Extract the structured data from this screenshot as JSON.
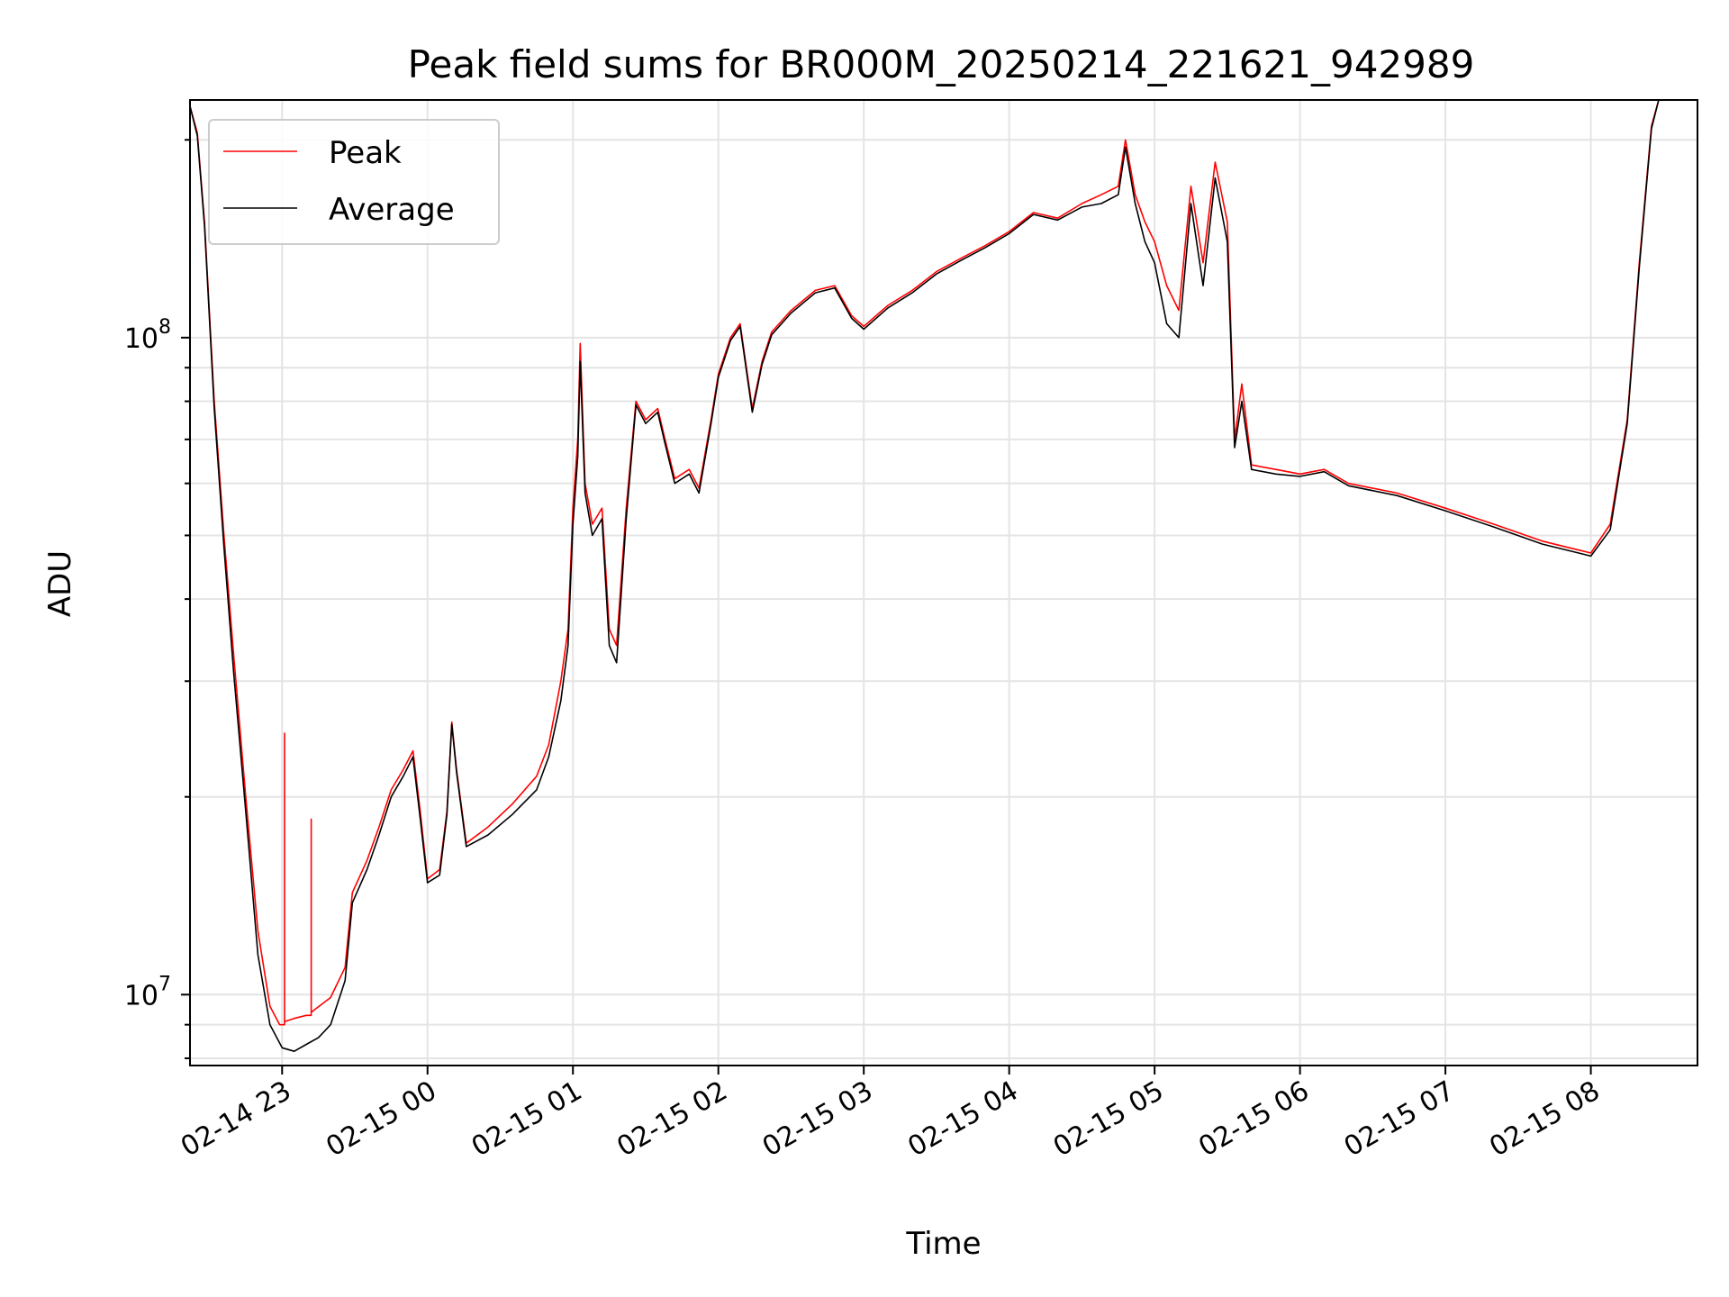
{
  "chart_data": {
    "type": "line",
    "title": "Peak field sums for BR000M_20250214_221621_942989",
    "xlabel": "Time",
    "ylabel": "ADU",
    "yscale": "log",
    "ylim": [
      7800000,
      230000000
    ],
    "xlim": [
      "2025-02-14 22:22",
      "2025-02-15 08:44"
    ],
    "grid": true,
    "legend_position": "top-left",
    "x_ticks": [
      {
        "t": "2025-02-14 23:00",
        "label": "02-14 23"
      },
      {
        "t": "2025-02-15 00:00",
        "label": "02-15 00"
      },
      {
        "t": "2025-02-15 01:00",
        "label": "02-15 01"
      },
      {
        "t": "2025-02-15 02:00",
        "label": "02-15 02"
      },
      {
        "t": "2025-02-15 03:00",
        "label": "02-15 03"
      },
      {
        "t": "2025-02-15 04:00",
        "label": "02-15 04"
      },
      {
        "t": "2025-02-15 05:00",
        "label": "02-15 05"
      },
      {
        "t": "2025-02-15 06:00",
        "label": "02-15 06"
      },
      {
        "t": "2025-02-15 07:00",
        "label": "02-15 07"
      },
      {
        "t": "2025-02-15 08:00",
        "label": "02-15 08"
      }
    ],
    "y_ticks": [
      {
        "value": 10000000,
        "base": "10",
        "exp": "7"
      },
      {
        "value": 100000000,
        "base": "10",
        "exp": "8"
      }
    ],
    "series": [
      {
        "name": "Peak",
        "color": "#ff0000",
        "points": [
          [
            "2025-02-14 22:22",
            225000000
          ],
          [
            "2025-02-14 22:25",
            205000000
          ],
          [
            "2025-02-14 22:28",
            150000000
          ],
          [
            "2025-02-14 22:32",
            80000000
          ],
          [
            "2025-02-14 22:36",
            50000000
          ],
          [
            "2025-02-14 22:40",
            33000000
          ],
          [
            "2025-02-14 22:45",
            20000000
          ],
          [
            "2025-02-14 22:50",
            12500000
          ],
          [
            "2025-02-14 22:55",
            9600000
          ],
          [
            "2025-02-14 22:59",
            9000000
          ],
          [
            "2025-02-14 23:01",
            9000000
          ],
          [
            "2025-02-14 23:01",
            25000000
          ],
          [
            "2025-02-14 23:01",
            9100000
          ],
          [
            "2025-02-14 23:05",
            9200000
          ],
          [
            "2025-02-14 23:10",
            9300000
          ],
          [
            "2025-02-14 23:12",
            9300000
          ],
          [
            "2025-02-14 23:12",
            18500000
          ],
          [
            "2025-02-14 23:12",
            9400000
          ],
          [
            "2025-02-14 23:20",
            9900000
          ],
          [
            "2025-02-14 23:26",
            11000000
          ],
          [
            "2025-02-14 23:29",
            14300000
          ],
          [
            "2025-02-14 23:35",
            16000000
          ],
          [
            "2025-02-14 23:40",
            18000000
          ],
          [
            "2025-02-14 23:45",
            20500000
          ],
          [
            "2025-02-14 23:50",
            22000000
          ],
          [
            "2025-02-14 23:54",
            23500000
          ],
          [
            "2025-02-14 23:57",
            19000000
          ],
          [
            "2025-02-15 00:00",
            15000000
          ],
          [
            "2025-02-15 00:05",
            15500000
          ],
          [
            "2025-02-15 00:08",
            19000000
          ],
          [
            "2025-02-15 00:10",
            26000000
          ],
          [
            "2025-02-15 00:12",
            22000000
          ],
          [
            "2025-02-15 00:16",
            17000000
          ],
          [
            "2025-02-15 00:25",
            18000000
          ],
          [
            "2025-02-15 00:35",
            19500000
          ],
          [
            "2025-02-15 00:45",
            21500000
          ],
          [
            "2025-02-15 00:50",
            24000000
          ],
          [
            "2025-02-15 00:55",
            30000000
          ],
          [
            "2025-02-15 00:58",
            36000000
          ],
          [
            "2025-02-15 01:00",
            55000000
          ],
          [
            "2025-02-15 01:02",
            70000000
          ],
          [
            "2025-02-15 01:03",
            98000000
          ],
          [
            "2025-02-15 01:05",
            60000000
          ],
          [
            "2025-02-15 01:08",
            52000000
          ],
          [
            "2025-02-15 01:12",
            55000000
          ],
          [
            "2025-02-15 01:15",
            36000000
          ],
          [
            "2025-02-15 01:18",
            34000000
          ],
          [
            "2025-02-15 01:22",
            55000000
          ],
          [
            "2025-02-15 01:26",
            80000000
          ],
          [
            "2025-02-15 01:30",
            75000000
          ],
          [
            "2025-02-15 01:35",
            78000000
          ],
          [
            "2025-02-15 01:38",
            70000000
          ],
          [
            "2025-02-15 01:42",
            61000000
          ],
          [
            "2025-02-15 01:48",
            63000000
          ],
          [
            "2025-02-15 01:52",
            59000000
          ],
          [
            "2025-02-15 01:57",
            75000000
          ],
          [
            "2025-02-15 02:00",
            88000000
          ],
          [
            "2025-02-15 02:05",
            100000000
          ],
          [
            "2025-02-15 02:09",
            105000000
          ],
          [
            "2025-02-15 02:14",
            78000000
          ],
          [
            "2025-02-15 02:18",
            92000000
          ],
          [
            "2025-02-15 02:22",
            102000000
          ],
          [
            "2025-02-15 02:30",
            110000000
          ],
          [
            "2025-02-15 02:40",
            118000000
          ],
          [
            "2025-02-15 02:48",
            120000000
          ],
          [
            "2025-02-15 02:55",
            108000000
          ],
          [
            "2025-02-15 03:00",
            104000000
          ],
          [
            "2025-02-15 03:10",
            112000000
          ],
          [
            "2025-02-15 03:20",
            118000000
          ],
          [
            "2025-02-15 03:30",
            126000000
          ],
          [
            "2025-02-15 03:40",
            132000000
          ],
          [
            "2025-02-15 03:50",
            138000000
          ],
          [
            "2025-02-15 04:00",
            145000000
          ],
          [
            "2025-02-15 04:10",
            155000000
          ],
          [
            "2025-02-15 04:20",
            152000000
          ],
          [
            "2025-02-15 04:30",
            160000000
          ],
          [
            "2025-02-15 04:38",
            165000000
          ],
          [
            "2025-02-15 04:45",
            170000000
          ],
          [
            "2025-02-15 04:48",
            200000000
          ],
          [
            "2025-02-15 04:52",
            165000000
          ],
          [
            "2025-02-15 04:56",
            150000000
          ],
          [
            "2025-02-15 05:00",
            140000000
          ],
          [
            "2025-02-15 05:05",
            120000000
          ],
          [
            "2025-02-15 05:10",
            110000000
          ],
          [
            "2025-02-15 05:15",
            170000000
          ],
          [
            "2025-02-15 05:20",
            130000000
          ],
          [
            "2025-02-15 05:25",
            185000000
          ],
          [
            "2025-02-15 05:30",
            150000000
          ],
          [
            "2025-02-15 05:33",
            70000000
          ],
          [
            "2025-02-15 05:36",
            85000000
          ],
          [
            "2025-02-15 05:40",
            64000000
          ],
          [
            "2025-02-15 05:50",
            63000000
          ],
          [
            "2025-02-15 06:00",
            62000000
          ],
          [
            "2025-02-15 06:10",
            63000000
          ],
          [
            "2025-02-15 06:20",
            60000000
          ],
          [
            "2025-02-15 06:40",
            58000000
          ],
          [
            "2025-02-15 07:00",
            55000000
          ],
          [
            "2025-02-15 07:20",
            52000000
          ],
          [
            "2025-02-15 07:40",
            49000000
          ],
          [
            "2025-02-15 07:55",
            47500000
          ],
          [
            "2025-02-15 08:00",
            47000000
          ],
          [
            "2025-02-15 08:08",
            52000000
          ],
          [
            "2025-02-15 08:15",
            75000000
          ],
          [
            "2025-02-15 08:20",
            130000000
          ],
          [
            "2025-02-15 08:25",
            210000000
          ],
          [
            "2025-02-15 08:28",
            230000000
          ]
        ]
      },
      {
        "name": "Average",
        "color": "#000000",
        "points": [
          [
            "2025-02-14 22:22",
            225000000
          ],
          [
            "2025-02-14 22:25",
            203000000
          ],
          [
            "2025-02-14 22:28",
            148000000
          ],
          [
            "2025-02-14 22:32",
            78000000
          ],
          [
            "2025-02-14 22:36",
            48000000
          ],
          [
            "2025-02-14 22:40",
            31000000
          ],
          [
            "2025-02-14 22:45",
            19000000
          ],
          [
            "2025-02-14 22:50",
            11500000
          ],
          [
            "2025-02-14 22:55",
            9000000
          ],
          [
            "2025-02-14 23:00",
            8300000
          ],
          [
            "2025-02-14 23:05",
            8200000
          ],
          [
            "2025-02-14 23:10",
            8400000
          ],
          [
            "2025-02-14 23:15",
            8600000
          ],
          [
            "2025-02-14 23:20",
            9000000
          ],
          [
            "2025-02-14 23:26",
            10500000
          ],
          [
            "2025-02-14 23:29",
            13800000
          ],
          [
            "2025-02-14 23:35",
            15500000
          ],
          [
            "2025-02-14 23:40",
            17500000
          ],
          [
            "2025-02-14 23:45",
            20000000
          ],
          [
            "2025-02-14 23:50",
            21500000
          ],
          [
            "2025-02-14 23:54",
            23000000
          ],
          [
            "2025-02-14 23:57",
            18500000
          ],
          [
            "2025-02-15 00:00",
            14800000
          ],
          [
            "2025-02-15 00:05",
            15200000
          ],
          [
            "2025-02-15 00:08",
            18800000
          ],
          [
            "2025-02-15 00:10",
            25800000
          ],
          [
            "2025-02-15 00:12",
            21800000
          ],
          [
            "2025-02-15 00:16",
            16800000
          ],
          [
            "2025-02-15 00:25",
            17500000
          ],
          [
            "2025-02-15 00:35",
            18800000
          ],
          [
            "2025-02-15 00:45",
            20500000
          ],
          [
            "2025-02-15 00:50",
            23000000
          ],
          [
            "2025-02-15 00:55",
            28000000
          ],
          [
            "2025-02-15 00:58",
            34000000
          ],
          [
            "2025-02-15 01:00",
            52000000
          ],
          [
            "2025-02-15 01:02",
            66000000
          ],
          [
            "2025-02-15 01:03",
            92000000
          ],
          [
            "2025-02-15 01:05",
            58000000
          ],
          [
            "2025-02-15 01:08",
            50000000
          ],
          [
            "2025-02-15 01:12",
            53000000
          ],
          [
            "2025-02-15 01:15",
            34000000
          ],
          [
            "2025-02-15 01:18",
            32000000
          ],
          [
            "2025-02-15 01:22",
            53000000
          ],
          [
            "2025-02-15 01:26",
            79000000
          ],
          [
            "2025-02-15 01:30",
            74000000
          ],
          [
            "2025-02-15 01:35",
            77000000
          ],
          [
            "2025-02-15 01:38",
            69000000
          ],
          [
            "2025-02-15 01:42",
            60000000
          ],
          [
            "2025-02-15 01:48",
            62000000
          ],
          [
            "2025-02-15 01:52",
            58000000
          ],
          [
            "2025-02-15 01:57",
            74000000
          ],
          [
            "2025-02-15 02:00",
            87000000
          ],
          [
            "2025-02-15 02:05",
            99000000
          ],
          [
            "2025-02-15 02:09",
            104000000
          ],
          [
            "2025-02-15 02:14",
            77000000
          ],
          [
            "2025-02-15 02:18",
            91000000
          ],
          [
            "2025-02-15 02:22",
            101000000
          ],
          [
            "2025-02-15 02:30",
            109000000
          ],
          [
            "2025-02-15 02:40",
            117000000
          ],
          [
            "2025-02-15 02:48",
            119000000
          ],
          [
            "2025-02-15 02:55",
            107000000
          ],
          [
            "2025-02-15 03:00",
            103000000
          ],
          [
            "2025-02-15 03:10",
            111000000
          ],
          [
            "2025-02-15 03:20",
            117000000
          ],
          [
            "2025-02-15 03:30",
            125000000
          ],
          [
            "2025-02-15 03:40",
            131000000
          ],
          [
            "2025-02-15 03:50",
            137000000
          ],
          [
            "2025-02-15 04:00",
            144000000
          ],
          [
            "2025-02-15 04:10",
            154000000
          ],
          [
            "2025-02-15 04:20",
            151000000
          ],
          [
            "2025-02-15 04:30",
            158000000
          ],
          [
            "2025-02-15 04:38",
            160000000
          ],
          [
            "2025-02-15 04:45",
            165000000
          ],
          [
            "2025-02-15 04:48",
            195000000
          ],
          [
            "2025-02-15 04:52",
            160000000
          ],
          [
            "2025-02-15 04:56",
            140000000
          ],
          [
            "2025-02-15 05:00",
            130000000
          ],
          [
            "2025-02-15 05:05",
            105000000
          ],
          [
            "2025-02-15 05:10",
            100000000
          ],
          [
            "2025-02-15 05:15",
            160000000
          ],
          [
            "2025-02-15 05:20",
            120000000
          ],
          [
            "2025-02-15 05:25",
            175000000
          ],
          [
            "2025-02-15 05:30",
            140000000
          ],
          [
            "2025-02-15 05:33",
            68000000
          ],
          [
            "2025-02-15 05:36",
            80000000
          ],
          [
            "2025-02-15 05:40",
            63000000
          ],
          [
            "2025-02-15 05:50",
            62000000
          ],
          [
            "2025-02-15 06:00",
            61500000
          ],
          [
            "2025-02-15 06:10",
            62500000
          ],
          [
            "2025-02-15 06:20",
            59500000
          ],
          [
            "2025-02-15 06:40",
            57500000
          ],
          [
            "2025-02-15 07:00",
            54500000
          ],
          [
            "2025-02-15 07:20",
            51500000
          ],
          [
            "2025-02-15 07:40",
            48500000
          ],
          [
            "2025-02-15 07:55",
            47000000
          ],
          [
            "2025-02-15 08:00",
            46500000
          ],
          [
            "2025-02-15 08:08",
            51000000
          ],
          [
            "2025-02-15 08:15",
            74000000
          ],
          [
            "2025-02-15 08:20",
            128000000
          ],
          [
            "2025-02-15 08:25",
            208000000
          ],
          [
            "2025-02-15 08:28",
            230000000
          ]
        ]
      }
    ]
  }
}
